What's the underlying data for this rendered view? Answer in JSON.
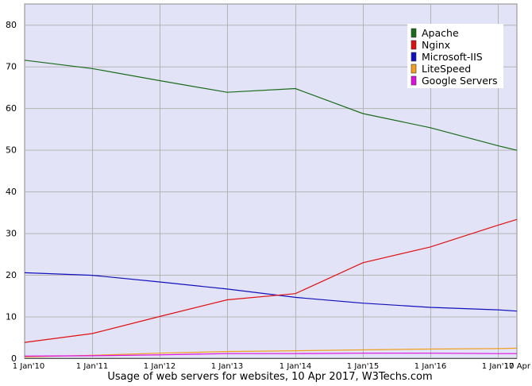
{
  "chart_data": {
    "type": "line",
    "title": "",
    "caption": "Usage of web servers for websites, 10 Apr 2017, W3Techs.com",
    "xlabel": "",
    "ylabel": "",
    "x": [
      "1 Jan'10",
      "1 Jan'11",
      "1 Jan'12",
      "1 Jan'13",
      "1 Jan'14",
      "1 Jan'15",
      "1 Jan'16",
      "1 Jan'17",
      "10 Apr"
    ],
    "x_tick_labels": [
      "1 Jan'10",
      "1 Jan'11",
      "1 Jan'12",
      "1 Jan'13",
      "1 Jan'14",
      "1 Jan'15",
      "1 Jan'16",
      "1 Jan'17",
      "10 Apr"
    ],
    "ylim": [
      0,
      85
    ],
    "y_ticks": [
      0,
      10,
      20,
      30,
      40,
      50,
      60,
      70,
      80
    ],
    "grid": true,
    "legend_position": "top-right",
    "series": [
      {
        "name": "Apache",
        "color": "#1a6b1a",
        "values": [
          71.5,
          69.5,
          66.6,
          63.8,
          64.7,
          58.7,
          55.3,
          51.0,
          49.9
        ]
      },
      {
        "name": "Nginx",
        "color": "#dd1111",
        "values": [
          3.8,
          5.9,
          10.0,
          14.0,
          15.5,
          22.9,
          26.7,
          31.9,
          33.3
        ]
      },
      {
        "name": "Microsoft-IIS",
        "color": "#1111bb",
        "values": [
          20.5,
          19.9,
          18.3,
          16.6,
          14.6,
          13.2,
          12.2,
          11.6,
          11.3
        ]
      },
      {
        "name": "LiteSpeed",
        "color": "#f0a020",
        "values": [
          0.3,
          0.7,
          1.2,
          1.6,
          1.8,
          2.0,
          2.2,
          2.3,
          2.4
        ]
      },
      {
        "name": "Google Servers",
        "color": "#dd11dd",
        "values": [
          0.5,
          0.6,
          0.8,
          1.1,
          1.1,
          1.2,
          1.2,
          1.1,
          1.1
        ]
      }
    ]
  }
}
